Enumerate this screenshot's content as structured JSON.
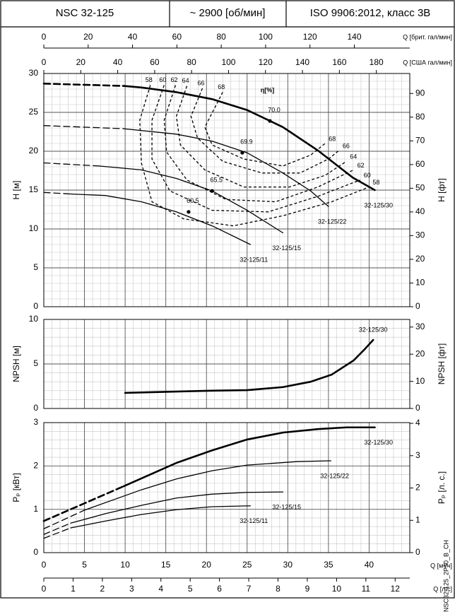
{
  "header": {
    "cells": [
      "NSC 32-125",
      "~ 2900 [об/мин]",
      "ISO 9906:2012, класс 3B"
    ]
  },
  "side_note": "NSC32-125_2P50_B_CH",
  "chart_data": [
    {
      "type": "line",
      "ylabel": "H [м]",
      "y2label": "H [фт]",
      "xlim": [
        0,
        45
      ],
      "xticks": [
        0,
        5,
        10,
        15,
        20,
        25,
        30,
        35,
        40
      ],
      "ylim": [
        0,
        30
      ],
      "yticks": [
        0,
        5,
        10,
        15,
        20,
        25,
        30
      ],
      "y2lim": [
        0,
        98.43
      ],
      "y2ticks": [
        0,
        10,
        20,
        30,
        40,
        50,
        60,
        70,
        80,
        90
      ],
      "grid": true,
      "minor_divisions": 5,
      "label_side": "below",
      "extra_x_axes": [
        {
          "label": "Q [брит. гал/мин]",
          "position": "top",
          "xlim": [
            0,
            165
          ],
          "xticks": [
            0,
            20,
            40,
            60,
            80,
            100,
            120,
            140
          ]
        },
        {
          "label": "Q [США гал/мин]",
          "position": "top",
          "xlim": [
            0,
            198.1
          ],
          "xticks": [
            0,
            20,
            40,
            60,
            80,
            100,
            120,
            140,
            160,
            180
          ]
        }
      ],
      "series": [
        {
          "name": "32-125/30",
          "color": "#000000",
          "line_width": 2.6,
          "segments": [
            {
              "style": "dashed",
              "x": [
                0,
                9.8
              ],
              "values": [
                28.7,
                28.4
              ]
            },
            {
              "style": "solid",
              "x": [
                9.8,
                12,
                16.3,
                20.7,
                25,
                29.4,
                33.7,
                38,
                40.7
              ],
              "values": [
                28.4,
                28.2,
                27.6,
                26.7,
                25.3,
                23.1,
                20.1,
                16.6,
                15.0
              ]
            }
          ]
        },
        {
          "name": "32-125/22",
          "color": "#000000",
          "line_width": 1.3,
          "segments": [
            {
              "style": "dashed",
              "x": [
                0,
                9.8
              ],
              "values": [
                23.3,
                22.9
              ]
            },
            {
              "style": "solid",
              "x": [
                9.8,
                16.3,
                20.7,
                25,
                29.4,
                32.8,
                35
              ],
              "values": [
                22.9,
                22.2,
                21.3,
                19.8,
                17.2,
                14.9,
                12.9
              ]
            }
          ]
        },
        {
          "name": "32-125/15",
          "color": "#000000",
          "line_width": 1.3,
          "segments": [
            {
              "style": "dashed",
              "x": [
                0,
                6.8
              ],
              "values": [
                18.5,
                18.1
              ]
            },
            {
              "style": "solid",
              "x": [
                6.8,
                12,
                16.3,
                20.7,
                25,
                29.4
              ],
              "values": [
                18.1,
                17.6,
                16.5,
                14.9,
                12.4,
                9.5
              ]
            }
          ]
        },
        {
          "name": "32-125/11",
          "color": "#000000",
          "line_width": 1.3,
          "segments": [
            {
              "style": "dashed",
              "x": [
                0,
                3.3
              ],
              "values": [
                14.7,
                14.5
              ]
            },
            {
              "style": "solid",
              "x": [
                3.3,
                7.6,
                12,
                16.3,
                20.7,
                25.4
              ],
              "values": [
                14.5,
                14.3,
                13.5,
                12.2,
                10.4,
                8.0
              ]
            }
          ]
        }
      ],
      "contours": {
        "label": "η[%]",
        "lines": [
          {
            "label": "58",
            "x": [
              13.1,
              11.8,
              12.0,
              13.3,
              17.2,
              23.3,
              29.4,
              35.4,
              40.0
            ],
            "values": [
              28.5,
              24.0,
              18.5,
              13.5,
              11.3,
              10.4,
              11.7,
              13.5,
              15.4
            ]
          },
          {
            "label": "60",
            "x": [
              14.8,
              13.3,
              13.3,
              15.5,
              20.7,
              27.6,
              33.7,
              38.9
            ],
            "values": [
              28.5,
              24.0,
              19.0,
              14.9,
              12.4,
              12.2,
              14.2,
              16.3
            ]
          },
          {
            "label": "62",
            "x": [
              16.2,
              14.8,
              15.1,
              17.6,
              22.4,
              28.5,
              33.7,
              38.1
            ],
            "values": [
              28.5,
              24.0,
              19.9,
              16.3,
              13.8,
              13.5,
              15.4,
              17.6
            ]
          },
          {
            "label": "64",
            "x": [
              17.6,
              16.3,
              16.8,
              19.8,
              24.6,
              30.2,
              34.6,
              37.2
            ],
            "values": [
              28.4,
              24.5,
              20.8,
              17.6,
              15.4,
              15.4,
              16.9,
              18.7
            ]
          },
          {
            "label": "66",
            "x": [
              19.5,
              18.1,
              18.9,
              22.0,
              26.8,
              31.5,
              35.0,
              36.3
            ],
            "values": [
              28.1,
              24.5,
              21.7,
              18.7,
              17.2,
              17.2,
              19.0,
              20.1
            ]
          },
          {
            "label": "68",
            "x": [
              22.0,
              19.8,
              20.7,
              24.6,
              29.4,
              32.8,
              34.6
            ],
            "values": [
              27.6,
              23.1,
              20.8,
              19.0,
              18.1,
              19.5,
              21.0
            ]
          }
        ]
      },
      "points": [
        {
          "label": "70.0",
          "x": 27.8,
          "value": 23.9
        },
        {
          "label": "69.9",
          "x": 24.4,
          "value": 19.8
        },
        {
          "label": "65.5",
          "x": 20.7,
          "value": 14.9
        },
        {
          "label": "60.5",
          "x": 17.8,
          "value": 12.2
        }
      ]
    },
    {
      "type": "line",
      "ylabel": "NPSH [м]",
      "y2label": "NPSH [фт]",
      "xlim": [
        0,
        45
      ],
      "xticks": [
        0,
        5,
        10,
        15,
        20,
        25,
        30,
        35,
        40
      ],
      "ylim": [
        0,
        10
      ],
      "yticks": [
        0,
        5,
        10
      ],
      "y2lim": [
        0,
        32.81
      ],
      "y2ticks": [
        0,
        10,
        20,
        30
      ],
      "grid": true,
      "minor_divisions": 5,
      "label_side": "above",
      "series": [
        {
          "name": "32-125/30",
          "color": "#000000",
          "line_width": 2.6,
          "segments": [
            {
              "style": "solid",
              "x": [
                10.0,
                16.3,
                20.7,
                25.0,
                29.4,
                32.8,
                35.4,
                38.1,
                39.4,
                40.5
              ],
              "values": [
                1.75,
                1.9,
                2.0,
                2.06,
                2.4,
                3.0,
                3.8,
                5.4,
                6.6,
                7.7
              ]
            }
          ]
        }
      ]
    },
    {
      "type": "line",
      "ylabel": "Pₚ [кВт]",
      "y2label": "Pₚ [л. с.]",
      "xlabel": "Q [м³/ч]",
      "xlim": [
        0,
        45
      ],
      "xticks": [
        0,
        5,
        10,
        15,
        20,
        25,
        30,
        35,
        40
      ],
      "ylim": [
        0,
        3
      ],
      "yticks": [
        0,
        1,
        2,
        3
      ],
      "y2lim": [
        0,
        4.023
      ],
      "y2ticks": [
        0,
        1,
        2,
        3,
        4
      ],
      "grid": true,
      "minor_divisions": 5,
      "label_side": "below",
      "extra_x_axes": [
        {
          "label": "Q [л/с]",
          "position": "bottom",
          "xlim": [
            0,
            12.5
          ],
          "xticks": [
            0,
            1,
            2,
            3,
            4,
            5,
            6,
            7,
            8,
            9,
            10,
            11,
            12
          ]
        }
      ],
      "series": [
        {
          "name": "32-125/30",
          "color": "#000000",
          "line_width": 2.6,
          "segments": [
            {
              "style": "dashed",
              "x": [
                0,
                9.8
              ],
              "values": [
                0.73,
                1.53
              ]
            },
            {
              "style": "solid",
              "x": [
                9.8,
                16.3,
                20.7,
                25.0,
                29.4,
                33.7,
                37.2,
                40.7
              ],
              "values": [
                1.53,
                2.07,
                2.36,
                2.61,
                2.77,
                2.85,
                2.89,
                2.89
              ]
            }
          ]
        },
        {
          "name": "32-125/22",
          "color": "#000000",
          "line_width": 1.3,
          "segments": [
            {
              "style": "dashed",
              "x": [
                0,
                5.0
              ],
              "values": [
                0.55,
                0.98
              ]
            },
            {
              "style": "solid",
              "x": [
                5.0,
                12.0,
                16.3,
                20.7,
                25.0,
                31.1,
                35.3
              ],
              "values": [
                0.98,
                1.45,
                1.7,
                1.89,
                2.02,
                2.1,
                2.12
              ]
            }
          ]
        },
        {
          "name": "32-125/15",
          "color": "#000000",
          "line_width": 1.3,
          "segments": [
            {
              "style": "dashed",
              "x": [
                0,
                3.3
              ],
              "values": [
                0.42,
                0.68
              ]
            },
            {
              "style": "solid",
              "x": [
                3.3,
                7.6,
                12.0,
                16.3,
                20.7,
                25.0,
                29.4
              ],
              "values": [
                0.68,
                0.9,
                1.09,
                1.26,
                1.35,
                1.39,
                1.4
              ]
            }
          ]
        },
        {
          "name": "32-125/11",
          "color": "#000000",
          "line_width": 1.3,
          "segments": [
            {
              "style": "dashed",
              "x": [
                0,
                3.3
              ],
              "values": [
                0.33,
                0.57
              ]
            },
            {
              "style": "solid",
              "x": [
                3.3,
                7.6,
                12.0,
                16.3,
                20.7,
                25.4
              ],
              "values": [
                0.57,
                0.73,
                0.88,
                0.99,
                1.06,
                1.08
              ]
            }
          ]
        }
      ]
    }
  ]
}
